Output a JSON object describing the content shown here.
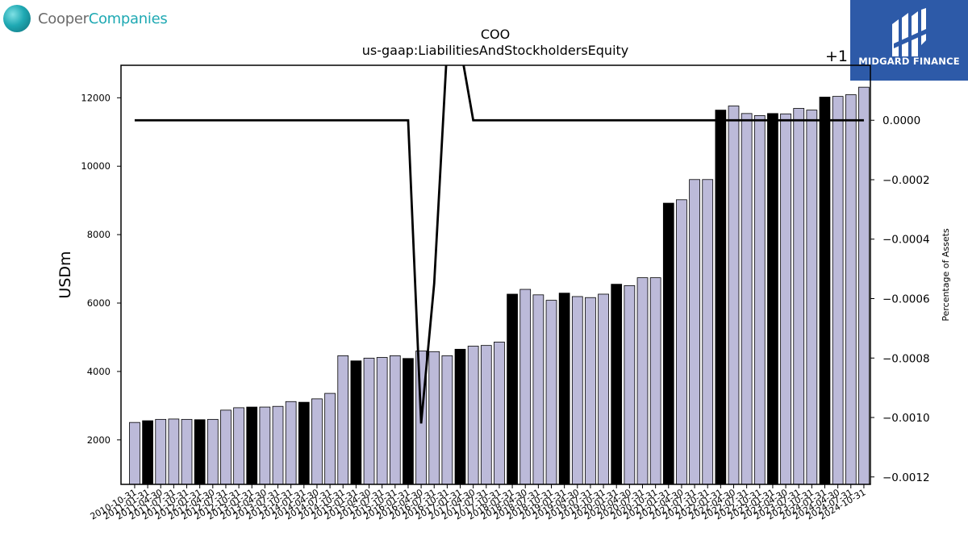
{
  "logos": {
    "left_word1": "Cooper",
    "left_word2": "Companies",
    "right_brand": "MIDGARD FINANCE"
  },
  "chart_data": {
    "type": "bar",
    "title": "COO",
    "subtitle": "us-gaap:LiabilitiesAndStockholdersEquity",
    "ylabel": "USDm",
    "y2label": "Percentage of Assets",
    "y2_offset_label": "+1",
    "ylim": [
      700,
      12950
    ],
    "y2lim": [
      -0.001225,
      0.000185
    ],
    "yticks": [
      2000,
      4000,
      6000,
      8000,
      10000,
      12000
    ],
    "y2ticks": [
      {
        "v": 0.0,
        "label": "0.0000"
      },
      {
        "v": -0.0002,
        "label": "−0.0002"
      },
      {
        "v": -0.0004,
        "label": "−0.0004"
      },
      {
        "v": -0.0006,
        "label": "−0.0006"
      },
      {
        "v": -0.0008,
        "label": "−0.0008"
      },
      {
        "v": -0.001,
        "label": "−0.0010"
      },
      {
        "v": -0.0012,
        "label": "−0.0012"
      }
    ],
    "colors": {
      "bar_quarter": "#bcbad9",
      "bar_annual": "#000000",
      "line": "#000000"
    },
    "categories": [
      "2010-10-31",
      "2011-01-31",
      "2011-04-30",
      "2011-07-31",
      "2011-10-31",
      "2012-01-31",
      "2012-04-30",
      "2012-07-31",
      "2012-10-31",
      "2013-01-31",
      "2013-04-30",
      "2013-07-31",
      "2013-10-31",
      "2014-01-31",
      "2014-04-30",
      "2014-07-31",
      "2014-10-31",
      "2015-01-31",
      "2015-04-30",
      "2015-07-31",
      "2015-10-31",
      "2016-01-31",
      "2016-04-30",
      "2016-07-31",
      "2016-10-31",
      "2017-01-31",
      "2017-04-30",
      "2017-07-31",
      "2017-10-31",
      "2018-01-31",
      "2018-04-30",
      "2018-07-31",
      "2018-10-31",
      "2019-01-31",
      "2019-04-30",
      "2019-07-31",
      "2019-10-31",
      "2020-01-31",
      "2020-04-30",
      "2020-07-31",
      "2020-10-31",
      "2021-01-31",
      "2021-04-30",
      "2021-07-31",
      "2021-10-31",
      "2022-01-31",
      "2022-04-30",
      "2022-07-31",
      "2022-10-31",
      "2023-01-31",
      "2023-04-30",
      "2023-07-31",
      "2023-10-31",
      "2024-01-31",
      "2024-04-30",
      "2024-07-31",
      "2024-10-31"
    ],
    "series": [
      {
        "values": [
          2510,
          2560,
          2600,
          2610,
          2600,
          2590,
          2600,
          2870,
          2940,
          2960,
          2960,
          2980,
          3120,
          3100,
          3200,
          3360,
          4460,
          4310,
          4390,
          4410,
          4460,
          4380,
          4600,
          4580,
          4460,
          4650,
          4740,
          4760,
          4860,
          6260,
          6400,
          6240,
          6080,
          6290,
          6190,
          6160,
          6260,
          6550,
          6510,
          6740,
          6740,
          8920,
          9020,
          9610,
          9610,
          11640,
          11760,
          11540,
          11480,
          11540,
          11530,
          11690,
          11640,
          12020,
          12040,
          12090,
          12310
        ],
        "annual": [
          0,
          1,
          0,
          0,
          0,
          1,
          0,
          0,
          0,
          1,
          0,
          0,
          0,
          1,
          0,
          0,
          0,
          1,
          0,
          0,
          0,
          1,
          0,
          0,
          0,
          1,
          0,
          0,
          0,
          1,
          0,
          0,
          0,
          1,
          0,
          0,
          0,
          1,
          0,
          0,
          0,
          1,
          0,
          0,
          0,
          1,
          0,
          0,
          0,
          1,
          0,
          0,
          0,
          1,
          0,
          0,
          0
        ]
      },
      {
        "axis": "right",
        "type": "line",
        "values": [
          0,
          0,
          0,
          0,
          0,
          0,
          0,
          0,
          0,
          0,
          0,
          0,
          0,
          0,
          0,
          0,
          0,
          0,
          0,
          0,
          0,
          0,
          -0.00102,
          -0.00055,
          0.00025,
          0.00025,
          0,
          0,
          0,
          0,
          0,
          0,
          0,
          0,
          0,
          0,
          0,
          0,
          0,
          0,
          0,
          0,
          0,
          0,
          0,
          0,
          0,
          0,
          0,
          0,
          0,
          0,
          0,
          0,
          0,
          0,
          0
        ]
      }
    ]
  }
}
